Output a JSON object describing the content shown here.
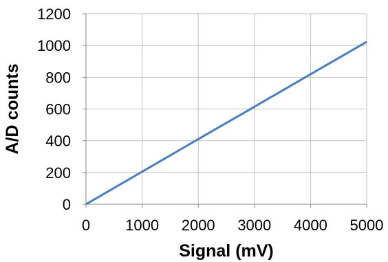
{
  "chart_data": {
    "type": "line",
    "title": "",
    "xlabel": "Signal (mV)",
    "ylabel": "A/D counts",
    "xlim": [
      0,
      5000
    ],
    "ylim": [
      0,
      1200
    ],
    "x_ticks": [
      0,
      1000,
      2000,
      3000,
      4000,
      5000
    ],
    "y_ticks": [
      0,
      200,
      400,
      600,
      800,
      1000,
      1200
    ],
    "grid": true,
    "legend": "none",
    "series": [
      {
        "color": "#4a7ebb",
        "x": [
          0,
          1000,
          2000,
          3000,
          4000,
          5000
        ],
        "y": [
          0,
          205,
          410,
          614,
          819,
          1023
        ]
      }
    ]
  }
}
